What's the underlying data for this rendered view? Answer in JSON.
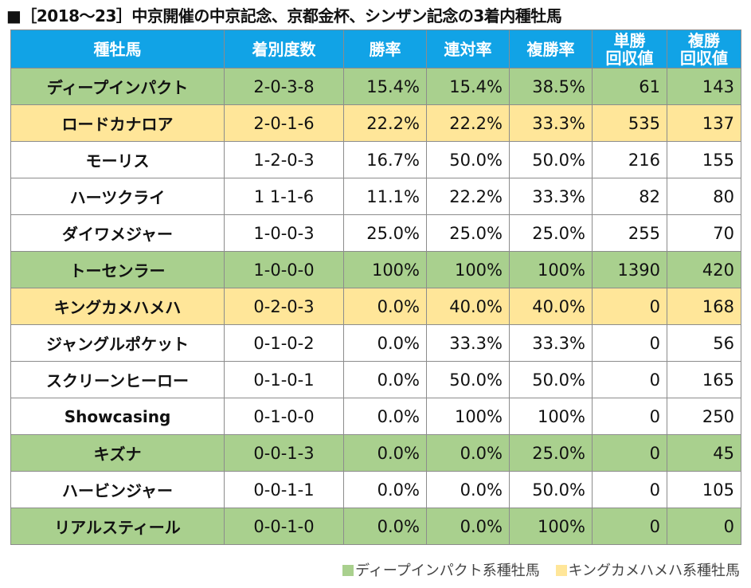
{
  "title": "■［2018～23］中京開催の中京記念、京都金杯、シンザン記念の3着内種牡馬",
  "colors": {
    "header": "#11a3e6",
    "green": "#a9d08e",
    "yellow": "#ffe699",
    "white": "#ffffff"
  },
  "headers": {
    "sire": "種牡馬",
    "record": "着別度数",
    "win_rate": "勝率",
    "quinella_rate": "連対率",
    "place_rate": "複勝率",
    "win_return_l1": "単勝",
    "win_return_l2": "回収値",
    "place_return_l1": "複勝",
    "place_return_l2": "回収値"
  },
  "rows": [
    {
      "color": "green",
      "sire": "ディープインパクト",
      "record": "2-0-3-8",
      "win_rate": "15.4%",
      "quinella_rate": "15.4%",
      "place_rate": "38.5%",
      "win_return": "61",
      "place_return": "143"
    },
    {
      "color": "yellow",
      "sire": "ロードカナロア",
      "record": "2-0-1-6",
      "win_rate": "22.2%",
      "quinella_rate": "22.2%",
      "place_rate": "33.3%",
      "win_return": "535",
      "place_return": "137"
    },
    {
      "color": "white",
      "sire": "モーリス",
      "record": "1-2-0-3",
      "win_rate": "16.7%",
      "quinella_rate": "50.0%",
      "place_rate": "50.0%",
      "win_return": "216",
      "place_return": "155"
    },
    {
      "color": "white",
      "sire": "ハーツクライ",
      "record": "1 1-1-6",
      "win_rate": "11.1%",
      "quinella_rate": "22.2%",
      "place_rate": "33.3%",
      "win_return": "82",
      "place_return": "80"
    },
    {
      "color": "white",
      "sire": "ダイワメジャー",
      "record": "1-0-0-3",
      "win_rate": "25.0%",
      "quinella_rate": "25.0%",
      "place_rate": "25.0%",
      "win_return": "255",
      "place_return": "70"
    },
    {
      "color": "green",
      "sire": "トーセンラー",
      "record": "1-0-0-0",
      "win_rate": "100%",
      "quinella_rate": "100%",
      "place_rate": "100%",
      "win_return": "1390",
      "place_return": "420"
    },
    {
      "color": "yellow",
      "sire": "キングカメハメハ",
      "record": "0-2-0-3",
      "win_rate": "0.0%",
      "quinella_rate": "40.0%",
      "place_rate": "40.0%",
      "win_return": "0",
      "place_return": "168"
    },
    {
      "color": "white",
      "sire": "ジャングルポケット",
      "record": "0-1-0-2",
      "win_rate": "0.0%",
      "quinella_rate": "33.3%",
      "place_rate": "33.3%",
      "win_return": "0",
      "place_return": "56"
    },
    {
      "color": "white",
      "sire": "スクリーンヒーロー",
      "record": "0-1-0-1",
      "win_rate": "0.0%",
      "quinella_rate": "50.0%",
      "place_rate": "50.0%",
      "win_return": "0",
      "place_return": "165"
    },
    {
      "color": "white",
      "sire": "Showcasing",
      "record": "0-1-0-0",
      "win_rate": "0.0%",
      "quinella_rate": "100%",
      "place_rate": "100%",
      "win_return": "0",
      "place_return": "250"
    },
    {
      "color": "green",
      "sire": "キズナ",
      "record": "0-0-1-3",
      "win_rate": "0.0%",
      "quinella_rate": "0.0%",
      "place_rate": "25.0%",
      "win_return": "0",
      "place_return": "45"
    },
    {
      "color": "white",
      "sire": "ハービンジャー",
      "record": "0-0-1-1",
      "win_rate": "0.0%",
      "quinella_rate": "0.0%",
      "place_rate": "50.0%",
      "win_return": "0",
      "place_return": "105"
    },
    {
      "color": "green",
      "sire": "リアルスティール",
      "record": "0-0-1-0",
      "win_rate": "0.0%",
      "quinella_rate": "0.0%",
      "place_rate": "100%",
      "win_return": "0",
      "place_return": "0"
    }
  ],
  "legend": {
    "green_label": "ディープインパクト系種牡馬",
    "yellow_label": "キングカメハメハ系種牡馬"
  }
}
